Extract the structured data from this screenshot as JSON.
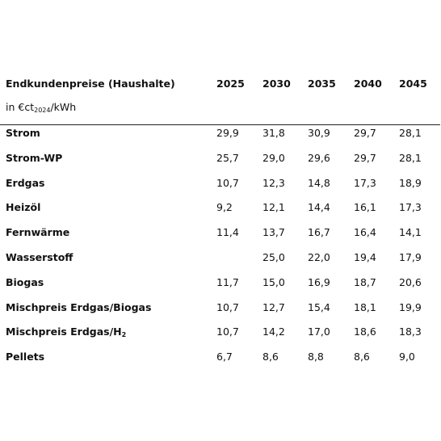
{
  "table": {
    "title": "Endkundenpreise (Haushalte)",
    "unit": {
      "prefix": "in €ct",
      "sub": "2024",
      "suffix": "/kWh"
    },
    "columns": [
      "2025",
      "2030",
      "2035",
      "2040",
      "2045"
    ],
    "rows": [
      {
        "label": "Strom",
        "cells": [
          "29,9",
          "31,8",
          "30,9",
          "29,7",
          "28,1"
        ]
      },
      {
        "label": "Strom-WP",
        "cells": [
          "25,7",
          "29,0",
          "29,6",
          "29,7",
          "28,1"
        ]
      },
      {
        "label": "Erdgas",
        "cells": [
          "10,7",
          "12,3",
          "14,8",
          "17,3",
          "18,9"
        ]
      },
      {
        "label": "Heizöl",
        "cells": [
          "9,2",
          "12,1",
          "14,4",
          "16,1",
          "17,3"
        ]
      },
      {
        "label": "Fernwärme",
        "cells": [
          "11,4",
          "13,7",
          "16,7",
          "16,4",
          "14,1"
        ]
      },
      {
        "label": "Wasserstoff",
        "cells": [
          null,
          "25,0",
          "22,0",
          "19,4",
          "17,9"
        ]
      },
      {
        "label": "Biogas",
        "cells": [
          "11,7",
          "15,0",
          "16,9",
          "18,7",
          "20,6"
        ]
      },
      {
        "label": "Mischpreis Erdgas/Biogas",
        "cells": [
          "10,7",
          "12,7",
          "15,4",
          "18,1",
          "19,9"
        ]
      },
      {
        "label": "Mischpreis Erdgas/H",
        "label_sub": "2",
        "cells": [
          "10,7",
          "14,2",
          "17,0",
          "18,6",
          "18,3"
        ]
      },
      {
        "label": "Pellets",
        "cells": [
          "6,7",
          "8,6",
          "8,8",
          "8,6",
          "9,0"
        ]
      }
    ]
  }
}
